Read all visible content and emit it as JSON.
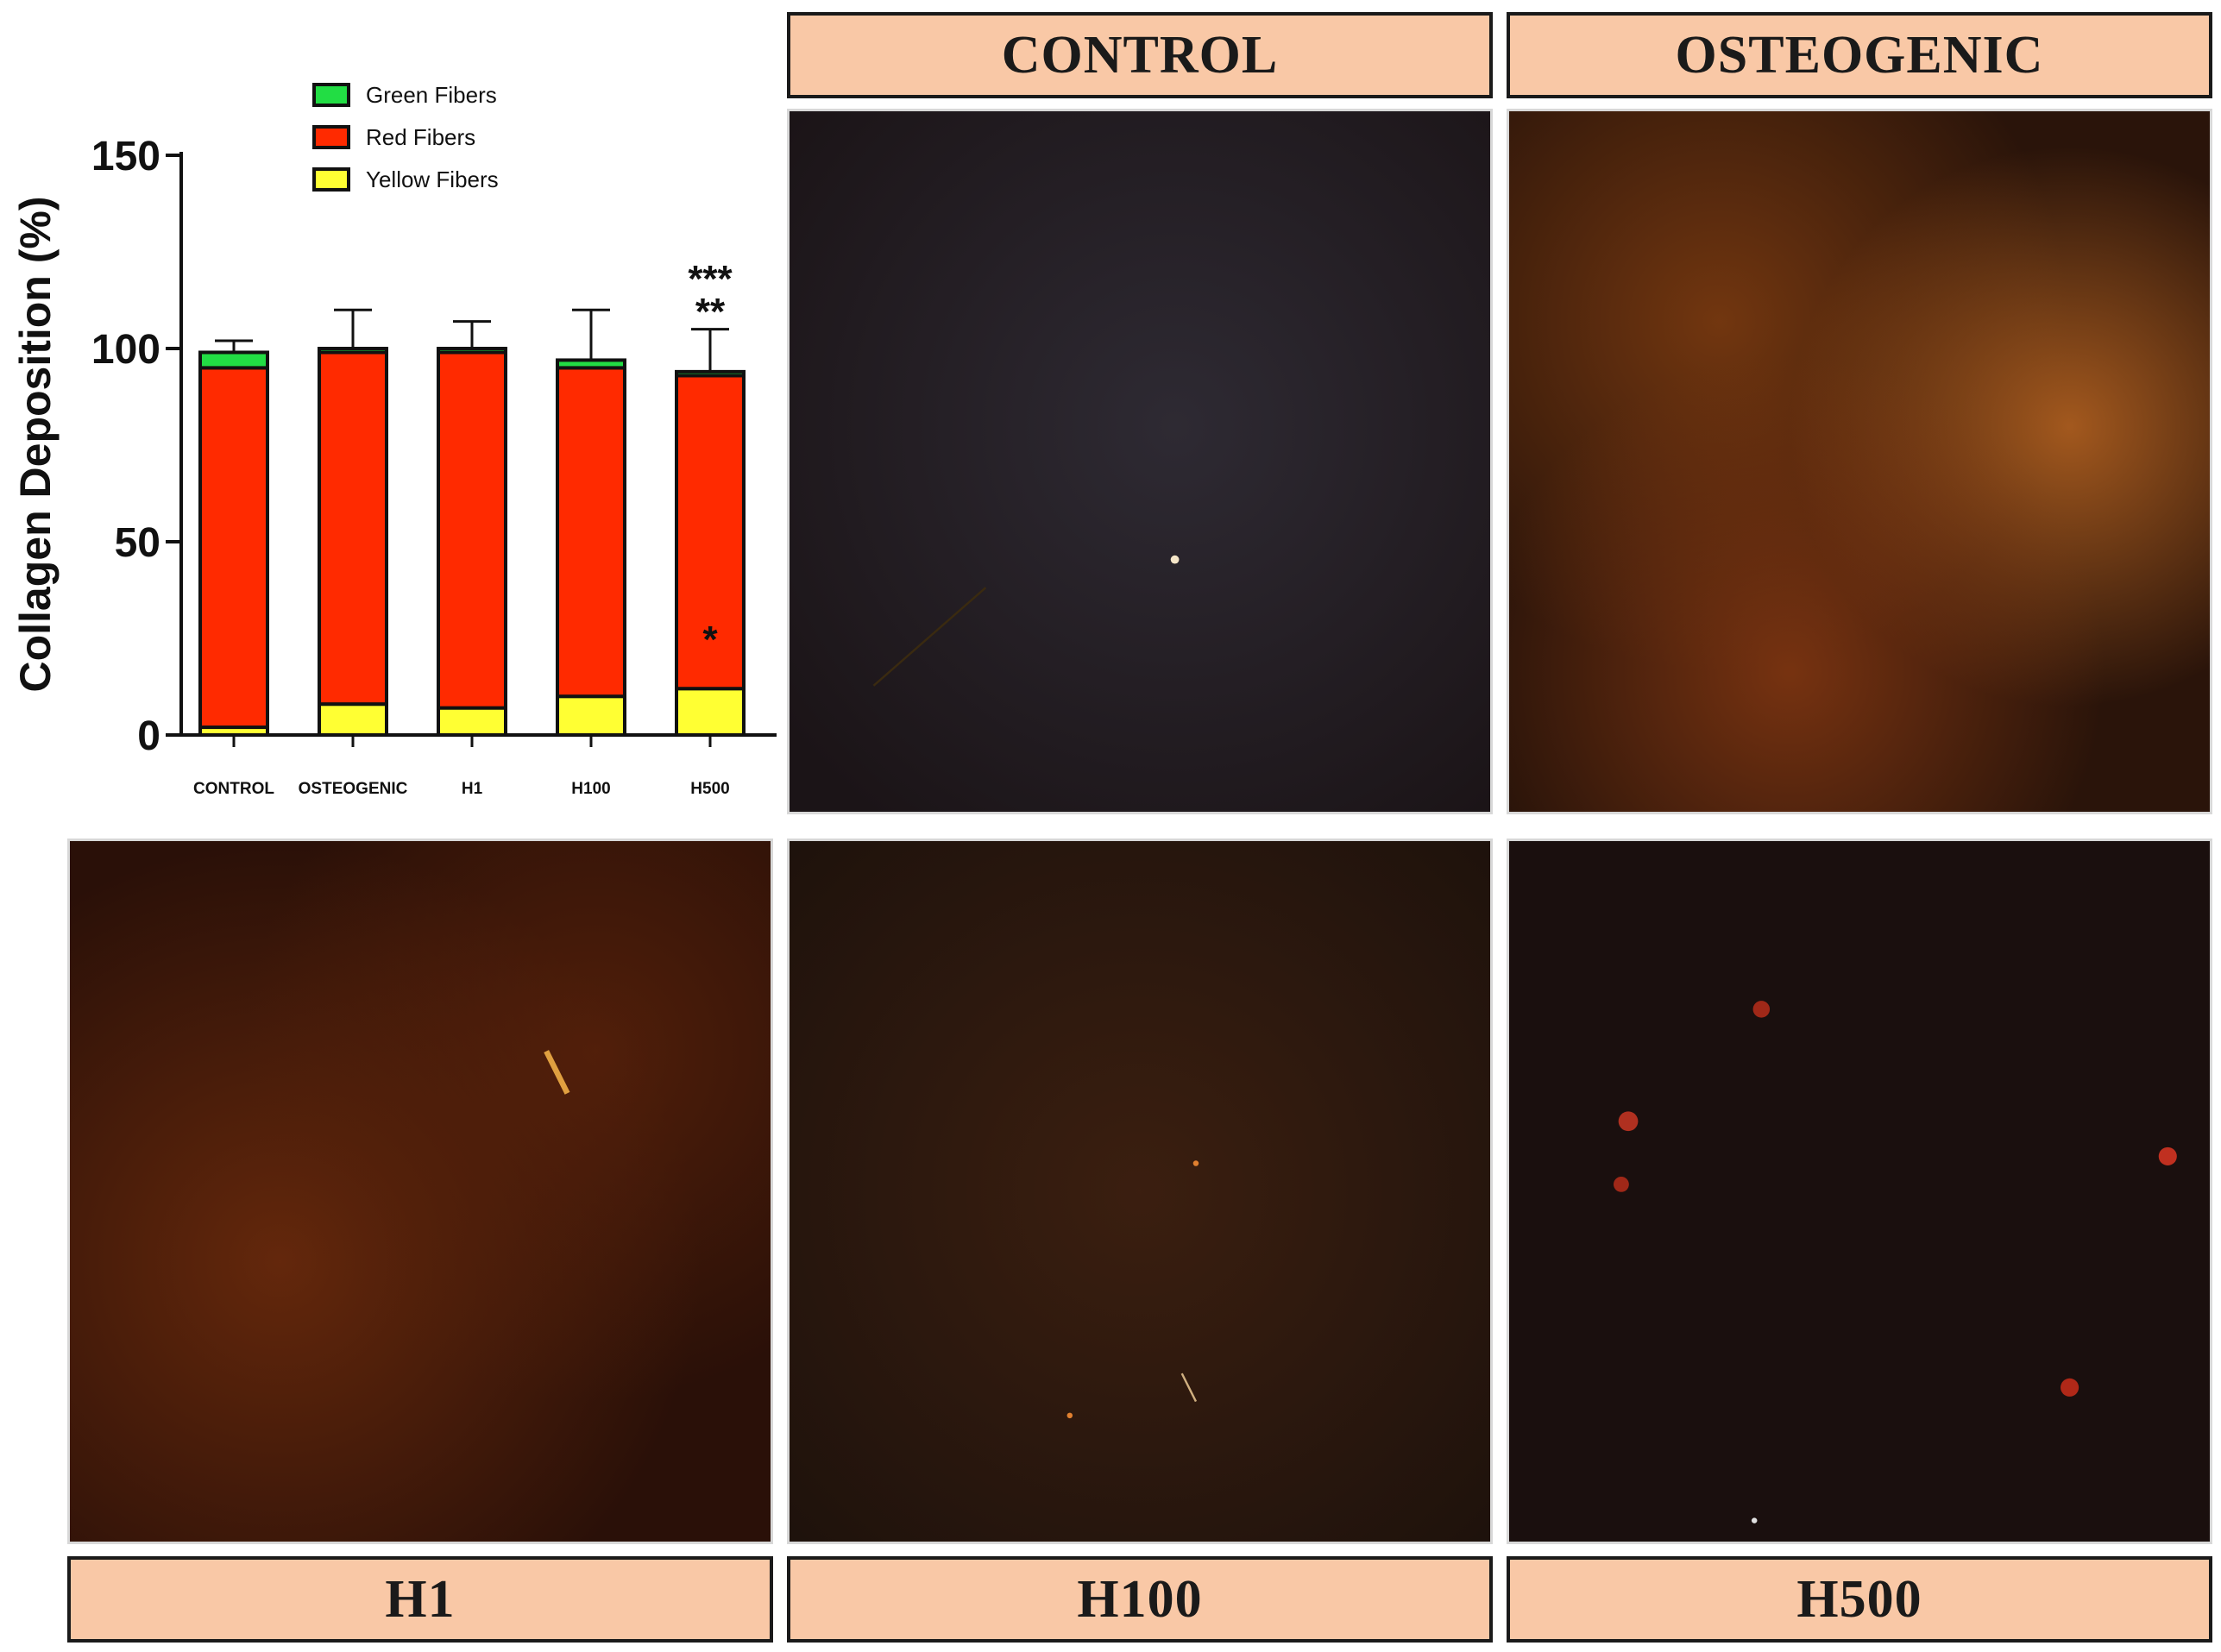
{
  "panels": {
    "control": "CONTROL",
    "osteogenic": "OSTEOGENIC",
    "h1": "H1",
    "h100": "H100",
    "h500": "H500"
  },
  "colors": {
    "label_bg": "#f9c8a6",
    "green": "#22dd44",
    "red": "#ff2a00",
    "yellow": "#ffff33"
  },
  "chart_data": {
    "type": "bar",
    "stacked": true,
    "ylabel": "Collagen Deposition (%)",
    "xlabel": "",
    "ylim": [
      0,
      150
    ],
    "yticks": [
      0,
      50,
      100,
      150
    ],
    "categories": [
      "CONTROL",
      "OSTEOGENIC",
      "H1",
      "H100",
      "H500"
    ],
    "legend_position": "top",
    "series": [
      {
        "name": "Yellow Fibers",
        "color": "#ffff33",
        "values": [
          2,
          8,
          7,
          10,
          12
        ],
        "error": [
          3,
          10,
          8,
          11,
          10
        ]
      },
      {
        "name": "Red Fibers",
        "color": "#ff2a00",
        "values": [
          93,
          91,
          92,
          85,
          81
        ],
        "error": [
          0,
          0,
          0,
          0,
          0
        ]
      },
      {
        "name": "Green Fibers",
        "color": "#22dd44",
        "values": [
          4,
          1,
          1,
          2,
          1
        ],
        "error": [
          3,
          10,
          7,
          13,
          11
        ]
      }
    ],
    "annotations": [
      {
        "category": "H500",
        "text": "***",
        "level": "top"
      },
      {
        "category": "H500",
        "text": "**",
        "level": "top"
      },
      {
        "category": "H500",
        "text": "*",
        "level": "yellow"
      }
    ]
  }
}
